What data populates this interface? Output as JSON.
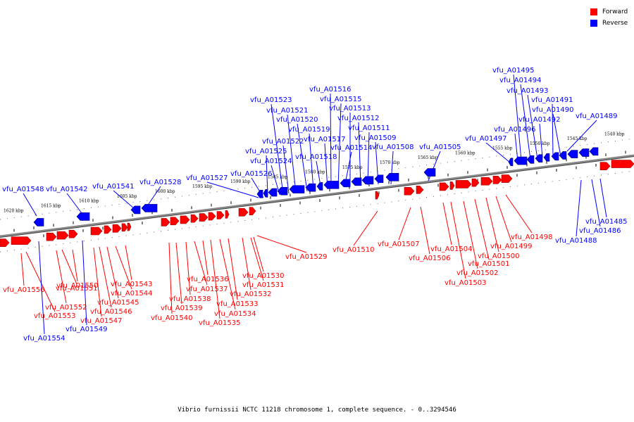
{
  "legend": [
    {
      "label": "Forward",
      "color": "#ff0000"
    },
    {
      "label": "Reverse",
      "color": "#0000ff"
    }
  ],
  "caption": "Vibrio furnissii NCTC 11218 chromosome 1, complete sequence. - 0..3294546",
  "colors": {
    "forward": "#ff0000",
    "reverse": "#0000ff",
    "backbone": "#888888"
  },
  "scale": {
    "ticks": [
      "1620 kbp",
      "1615 kbp",
      "1610 kbp",
      "1605 kbp",
      "1600 kbp",
      "1595 kbp",
      "1590 kbp",
      "1585 kbp",
      "1580 kbp",
      "1575 kbp",
      "1570 kbp",
      "1565 kbp",
      "1560 kbp",
      "1555 kbp",
      "1550 kbp",
      "1545 kbp",
      "1540 kbp"
    ]
  },
  "genes": {
    "forward": [
      "vfu_A01556",
      "vfu_A01553",
      "vfu_A01552",
      "vfu_A01551",
      "vfu_A01550",
      "vfu_A01547",
      "vfu_A01546",
      "vfu_A01545",
      "vfu_A01544",
      "vfu_A01543",
      "vfu_A01540",
      "vfu_A01539",
      "vfu_A01538",
      "vfu_A01537",
      "vfu_A01536",
      "vfu_A01535",
      "vfu_A01534",
      "vfu_A01533",
      "vfu_A01532",
      "vfu_A01531",
      "vfu_A01530",
      "vfu_A01529",
      "vfu_A01510",
      "vfu_A01507",
      "vfu_A01506",
      "vfu_A01504",
      "vfu_A01503",
      "vfu_A01502",
      "vfu_A01501",
      "vfu_A01500",
      "vfu_A01499",
      "vfu_A01498"
    ],
    "reverse": [
      "vfu_A01554",
      "vfu_A01549",
      "vfu_A01548",
      "vfu_A01542",
      "vfu_A01541",
      "vfu_A01528",
      "vfu_A01527",
      "vfu_A01526",
      "vfu_A01525",
      "vfu_A01524",
      "vfu_A01523",
      "vfu_A01522",
      "vfu_A01521",
      "vfu_A01520",
      "vfu_A01519",
      "vfu_A01518",
      "vfu_A01517",
      "vfu_A01516",
      "vfu_A01515",
      "vfu_A01514",
      "vfu_A01513",
      "vfu_A01512",
      "vfu_A01511",
      "vfu_A01509",
      "vfu_A01508",
      "vfu_A01505",
      "vfu_A01497",
      "vfu_A01496",
      "vfu_A01495",
      "vfu_A01494",
      "vfu_A01493",
      "vfu_A01492",
      "vfu_A01491",
      "vfu_A01490",
      "vfu_A01489",
      "vfu_A01488",
      "vfu_A01486",
      "vfu_A01485"
    ]
  }
}
